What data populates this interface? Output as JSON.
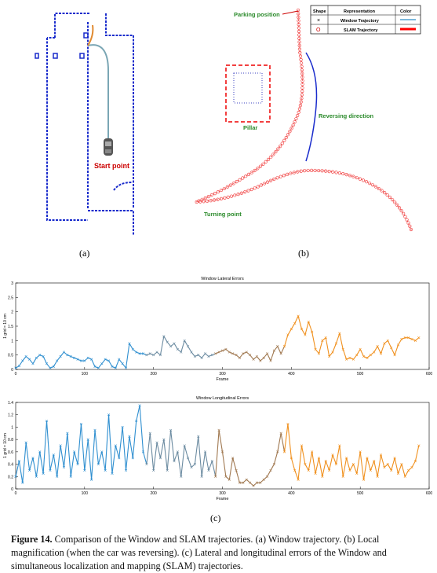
{
  "panel_a": {
    "label": "(a)",
    "start_point": "Start point"
  },
  "panel_b": {
    "label": "(b)",
    "parking_position": "Parking position",
    "pillar": "Pillar",
    "reversing_direction": "Reversing direction",
    "turning_point": "Turning point",
    "legend": {
      "headers": [
        "Shape",
        "Representation",
        "Color"
      ],
      "rows": [
        {
          "shape": "×",
          "name": "Window Trajectory",
          "color": "#4f9fd0"
        },
        {
          "shape": "O",
          "name": "SLAM Trajectory",
          "color": "#ff0000"
        }
      ]
    }
  },
  "panel_c": {
    "label": "(c)"
  },
  "caption": {
    "figure_label": "Figure 14.",
    "text": "Comparison of the Window and SLAM trajectories. (a) Window trajectory. (b) Local magnification (when the car was reversing). (c) Lateral and longitudinal errors of the Window and simultaneous localization and mapping (SLAM) trajectories."
  },
  "chart_data": [
    {
      "type": "line",
      "title": "Window Lateral Errors",
      "xlabel": "Frame",
      "ylabel": "1 grid = 10 cm",
      "xlim": [
        0,
        600
      ],
      "ylim": [
        0,
        3
      ],
      "xticks": [
        0,
        100,
        200,
        300,
        400,
        500,
        600
      ],
      "yticks": [
        0,
        0.5,
        1,
        1.5,
        2,
        2.5,
        3
      ],
      "x": [
        0,
        5,
        10,
        15,
        20,
        25,
        30,
        35,
        40,
        45,
        50,
        55,
        60,
        65,
        70,
        75,
        80,
        85,
        90,
        95,
        100,
        105,
        110,
        115,
        120,
        125,
        130,
        135,
        140,
        145,
        150,
        155,
        160,
        165,
        170,
        175,
        180,
        185,
        190,
        195,
        200,
        205,
        210,
        215,
        220,
        225,
        230,
        235,
        240,
        245,
        250,
        255,
        260,
        265,
        270,
        275,
        280,
        285,
        290,
        295,
        300,
        305,
        310,
        315,
        320,
        325,
        330,
        335,
        340,
        345,
        350,
        355,
        360,
        365,
        370,
        375,
        380,
        385,
        390,
        395,
        400,
        405,
        410,
        415,
        420,
        425,
        430,
        435,
        440,
        445,
        450,
        455,
        460,
        465,
        470,
        475,
        480,
        485,
        490,
        495,
        500,
        505,
        510,
        515,
        520,
        525,
        530,
        535,
        540,
        545,
        550,
        555,
        560,
        565,
        570,
        575,
        580,
        585
      ],
      "values": [
        0.05,
        0.12,
        0.3,
        0.45,
        0.35,
        0.2,
        0.4,
        0.5,
        0.45,
        0.2,
        0.05,
        0.1,
        0.3,
        0.45,
        0.6,
        0.5,
        0.45,
        0.4,
        0.35,
        0.3,
        0.3,
        0.4,
        0.35,
        0.1,
        0.05,
        0.2,
        0.35,
        0.3,
        0.1,
        0.05,
        0.35,
        0.2,
        0.05,
        0.9,
        0.7,
        0.6,
        0.55,
        0.55,
        0.5,
        0.55,
        0.5,
        0.6,
        0.5,
        1.15,
        0.95,
        0.8,
        0.9,
        0.7,
        0.6,
        1.0,
        0.8,
        0.6,
        0.45,
        0.5,
        0.4,
        0.55,
        0.45,
        0.5,
        0.55,
        0.6,
        0.65,
        0.7,
        0.6,
        0.55,
        0.5,
        0.4,
        0.55,
        0.6,
        0.5,
        0.35,
        0.45,
        0.3,
        0.4,
        0.55,
        0.3,
        0.65,
        0.8,
        0.55,
        0.8,
        1.2,
        1.4,
        1.6,
        1.85,
        1.4,
        1.2,
        1.65,
        1.3,
        0.7,
        0.55,
        1.0,
        1.1,
        0.45,
        0.6,
        0.9,
        1.25,
        0.7,
        0.35,
        0.4,
        0.35,
        0.5,
        0.7,
        0.45,
        0.4,
        0.5,
        0.6,
        0.8,
        0.55,
        0.9,
        1.0,
        0.75,
        0.5,
        0.85,
        1.05,
        1.1,
        1.1,
        1.05,
        1.0,
        1.1
      ],
      "series_colors": [
        "#2f8fd0",
        "#6a8aa0",
        "#a07850",
        "#f0901e"
      ]
    },
    {
      "type": "line",
      "title": "Window Longitudinal Errors",
      "xlabel": "Frame",
      "ylabel": "1 grid = 10 cm",
      "xlim": [
        0,
        600
      ],
      "ylim": [
        0,
        1.4
      ],
      "xticks": [
        0,
        100,
        200,
        300,
        400,
        500,
        600
      ],
      "yticks": [
        0,
        0.2,
        0.4,
        0.6,
        0.8,
        1,
        1.2,
        1.4
      ],
      "x": [
        0,
        5,
        10,
        15,
        20,
        25,
        30,
        35,
        40,
        45,
        50,
        55,
        60,
        65,
        70,
        75,
        80,
        85,
        90,
        95,
        100,
        105,
        110,
        115,
        120,
        125,
        130,
        135,
        140,
        145,
        150,
        155,
        160,
        165,
        170,
        175,
        180,
        185,
        190,
        195,
        200,
        205,
        210,
        215,
        220,
        225,
        230,
        235,
        240,
        245,
        250,
        255,
        260,
        265,
        270,
        275,
        280,
        285,
        290,
        295,
        300,
        305,
        310,
        315,
        320,
        325,
        330,
        335,
        340,
        345,
        350,
        355,
        360,
        365,
        370,
        375,
        380,
        385,
        390,
        395,
        400,
        405,
        410,
        415,
        420,
        425,
        430,
        435,
        440,
        445,
        450,
        455,
        460,
        465,
        470,
        475,
        480,
        485,
        490,
        495,
        500,
        505,
        510,
        515,
        520,
        525,
        530,
        535,
        540,
        545,
        550,
        555,
        560,
        565,
        570,
        575,
        580,
        585
      ],
      "values": [
        0.2,
        0.45,
        0.1,
        0.75,
        0.3,
        0.5,
        0.2,
        0.6,
        0.25,
        1.1,
        0.3,
        0.55,
        0.2,
        0.7,
        0.35,
        0.9,
        0.2,
        0.6,
        0.4,
        1.05,
        0.3,
        0.8,
        0.15,
        0.95,
        0.4,
        0.6,
        0.3,
        1.2,
        0.25,
        0.7,
        0.5,
        1.0,
        0.3,
        0.85,
        0.5,
        1.1,
        1.35,
        0.6,
        0.4,
        0.9,
        0.3,
        0.75,
        0.5,
        0.8,
        0.3,
        0.95,
        0.45,
        0.6,
        0.2,
        0.7,
        0.5,
        0.35,
        0.4,
        0.85,
        0.2,
        0.6,
        0.3,
        0.45,
        0.2,
        0.95,
        0.6,
        0.2,
        0.15,
        0.5,
        0.3,
        0.1,
        0.1,
        0.15,
        0.1,
        0.05,
        0.1,
        0.1,
        0.15,
        0.2,
        0.3,
        0.4,
        0.6,
        0.9,
        0.6,
        1.05,
        0.5,
        0.3,
        0.15,
        0.7,
        0.4,
        0.3,
        0.6,
        0.25,
        0.5,
        0.2,
        0.45,
        0.3,
        0.55,
        0.4,
        0.7,
        0.2,
        0.5,
        0.3,
        0.4,
        0.25,
        0.6,
        0.15,
        0.5,
        0.3,
        0.45,
        0.2,
        0.55,
        0.35,
        0.4,
        0.3,
        0.5,
        0.25,
        0.4,
        0.2,
        0.3,
        0.35,
        0.45,
        0.7
      ],
      "series_colors": [
        "#2f8fd0",
        "#6a8aa0",
        "#a07850",
        "#f0901e"
      ]
    }
  ]
}
